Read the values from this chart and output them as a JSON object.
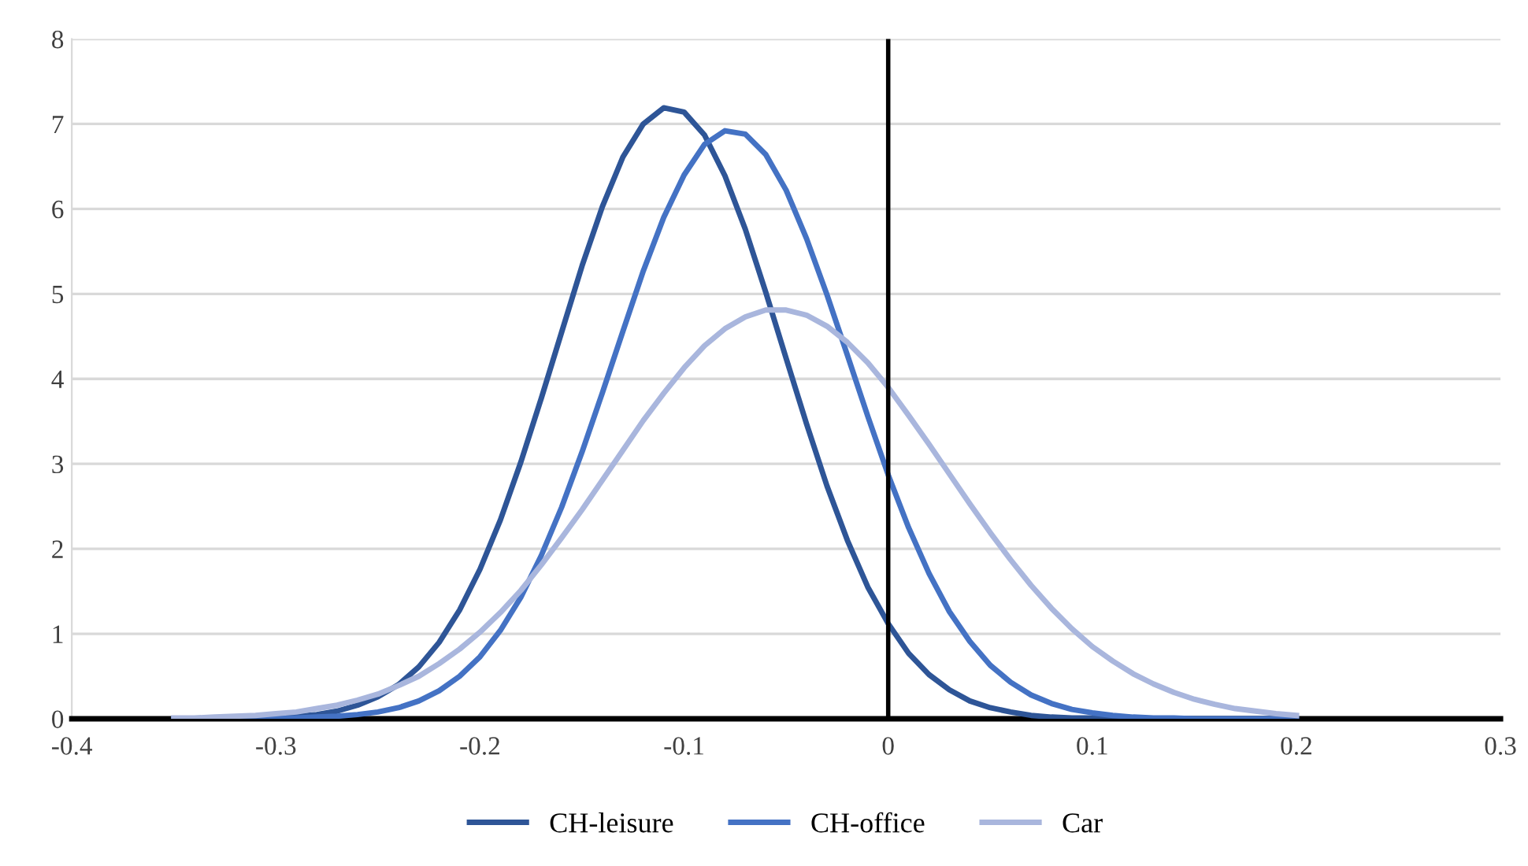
{
  "chart_data": {
    "type": "line",
    "x": [
      -0.35,
      -0.34,
      -0.33,
      -0.32,
      -0.31,
      -0.3,
      -0.29,
      -0.28,
      -0.27,
      -0.26,
      -0.25,
      -0.24,
      -0.23,
      -0.22,
      -0.21,
      -0.2,
      -0.19,
      -0.18,
      -0.17,
      -0.16,
      -0.15,
      -0.14,
      -0.13,
      -0.12,
      -0.11,
      -0.1,
      -0.09,
      -0.08,
      -0.07,
      -0.06,
      -0.05,
      -0.04,
      -0.03,
      -0.02,
      -0.01,
      0,
      0.01,
      0.02,
      0.03,
      0.04,
      0.05,
      0.06,
      0.07,
      0.08,
      0.09,
      0.1,
      0.11,
      0.12,
      0.13,
      0.14,
      0.15,
      0.16,
      0.17,
      0.18,
      0.19,
      0.2
    ],
    "series": [
      {
        "name": "CH-leisure",
        "color": "#2e5597",
        "values": [
          0,
          0,
          0,
          0,
          0.01,
          0.02,
          0.03,
          0.05,
          0.09,
          0.16,
          0.26,
          0.4,
          0.61,
          0.9,
          1.28,
          1.76,
          2.34,
          3.02,
          3.77,
          4.55,
          5.33,
          6.03,
          6.61,
          7.0,
          7.19,
          7.14,
          6.87,
          6.39,
          5.76,
          5.02,
          4.24,
          3.47,
          2.74,
          2.1,
          1.55,
          1.12,
          0.77,
          0.52,
          0.34,
          0.21,
          0.13,
          0.08,
          0.04,
          0.02,
          0.01,
          0.01,
          0,
          0,
          0,
          0,
          0,
          0,
          0,
          0,
          0,
          0
        ]
      },
      {
        "name": "CH-office",
        "color": "#4472c4",
        "values": [
          0,
          0,
          0,
          0,
          0,
          0,
          0.01,
          0.02,
          0.03,
          0.05,
          0.08,
          0.13,
          0.21,
          0.33,
          0.5,
          0.73,
          1.04,
          1.43,
          1.92,
          2.49,
          3.14,
          3.84,
          4.56,
          5.27,
          5.9,
          6.4,
          6.76,
          6.92,
          6.88,
          6.64,
          6.22,
          5.65,
          4.99,
          4.28,
          3.56,
          2.87,
          2.25,
          1.71,
          1.26,
          0.91,
          0.63,
          0.43,
          0.28,
          0.18,
          0.11,
          0.07,
          0.04,
          0.02,
          0.01,
          0.01,
          0,
          0,
          0,
          0,
          0,
          0
        ]
      },
      {
        "name": "Car",
        "color": "#a9b6dd",
        "values": [
          0.01,
          0.01,
          0.02,
          0.03,
          0.04,
          0.06,
          0.08,
          0.12,
          0.16,
          0.22,
          0.29,
          0.39,
          0.5,
          0.65,
          0.82,
          1.02,
          1.25,
          1.51,
          1.81,
          2.13,
          2.46,
          2.81,
          3.16,
          3.51,
          3.83,
          4.13,
          4.39,
          4.59,
          4.73,
          4.81,
          4.81,
          4.75,
          4.62,
          4.43,
          4.19,
          3.9,
          3.57,
          3.23,
          2.88,
          2.53,
          2.19,
          1.87,
          1.57,
          1.3,
          1.06,
          0.85,
          0.68,
          0.53,
          0.41,
          0.31,
          0.23,
          0.17,
          0.12,
          0.09,
          0.06,
          0.04
        ]
      }
    ],
    "xlim": [
      -0.4,
      0.3
    ],
    "xticks": [
      -0.4,
      -0.3,
      -0.2,
      -0.1,
      0,
      0.1,
      0.2,
      0.3
    ],
    "ylim": [
      0,
      8
    ],
    "yticks": [
      0,
      1,
      2,
      3,
      4,
      5,
      6,
      7,
      8
    ],
    "ref_lines": [
      {
        "axis": "x",
        "value": 0,
        "color": "#000000"
      }
    ],
    "grid": "y",
    "legend": "bottom",
    "marker": "none",
    "line_style": "solid"
  }
}
